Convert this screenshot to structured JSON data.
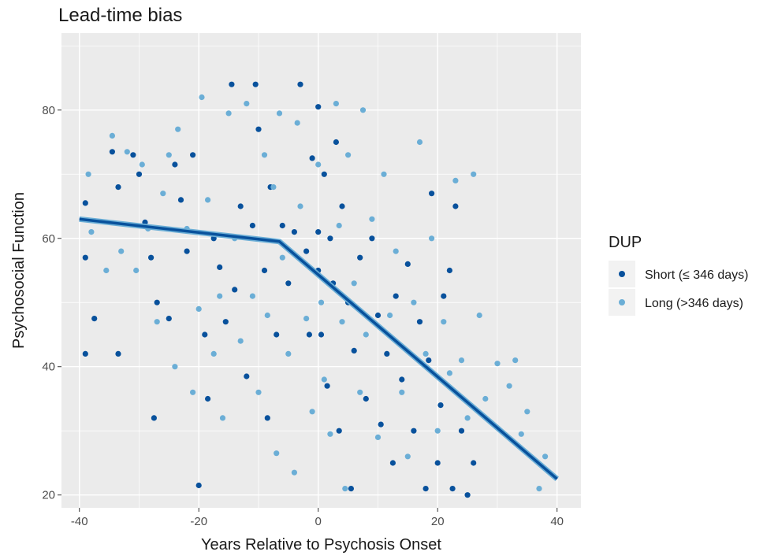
{
  "chart_data": {
    "type": "scatter",
    "title": "Lead-time bias",
    "xlabel": "Years Relative to Psychosis Onset",
    "ylabel": "Psychosocial Function",
    "xlim": [
      -43,
      44
    ],
    "ylim": [
      18,
      92
    ],
    "xticks": [
      -40,
      -20,
      0,
      20,
      40
    ],
    "yticks": [
      20,
      40,
      60,
      80
    ],
    "grid": true,
    "legend": {
      "title": "DUP",
      "position": "right",
      "entries": [
        "Short (≤ 346 days)",
        "Long (>346 days)"
      ]
    },
    "series": [
      {
        "name": "Short (≤ 346 days)",
        "color": "#08519c",
        "points": [
          [
            -39,
            65.5
          ],
          [
            -39,
            57
          ],
          [
            -39,
            42
          ],
          [
            -37.5,
            47.5
          ],
          [
            -34.5,
            73.5
          ],
          [
            -33.5,
            68
          ],
          [
            -33.5,
            42
          ],
          [
            -31,
            73
          ],
          [
            -30,
            70
          ],
          [
            -29,
            62.5
          ],
          [
            -28,
            57
          ],
          [
            -27.5,
            32
          ],
          [
            -27,
            50
          ],
          [
            -25,
            47.5
          ],
          [
            -24,
            71.5
          ],
          [
            -23,
            66
          ],
          [
            -22,
            58
          ],
          [
            -21,
            73
          ],
          [
            -20,
            21.5
          ],
          [
            -19,
            45
          ],
          [
            -18.5,
            35
          ],
          [
            -17.5,
            60
          ],
          [
            -16.5,
            55.5
          ],
          [
            -15.5,
            47
          ],
          [
            -14.5,
            84
          ],
          [
            -14,
            52
          ],
          [
            -13,
            65
          ],
          [
            -12,
            38.5
          ],
          [
            -11,
            62
          ],
          [
            -10.5,
            84
          ],
          [
            -10,
            77
          ],
          [
            -9,
            55
          ],
          [
            -8.5,
            32
          ],
          [
            -8,
            68
          ],
          [
            -7,
            45
          ],
          [
            -6,
            62
          ],
          [
            -5,
            53
          ],
          [
            -4,
            61
          ],
          [
            -3,
            84
          ],
          [
            -2,
            58
          ],
          [
            -1.5,
            45
          ],
          [
            -1,
            72.5
          ],
          [
            0,
            61
          ],
          [
            0,
            80.5
          ],
          [
            0,
            55
          ],
          [
            0.5,
            45
          ],
          [
            1,
            70
          ],
          [
            1.5,
            37
          ],
          [
            2,
            60
          ],
          [
            2.5,
            53
          ],
          [
            3,
            75
          ],
          [
            3.5,
            30
          ],
          [
            4,
            65
          ],
          [
            5,
            50
          ],
          [
            5.5,
            21
          ],
          [
            6,
            42.5
          ],
          [
            7,
            57
          ],
          [
            8,
            35
          ],
          [
            9,
            60
          ],
          [
            10,
            48
          ],
          [
            10.5,
            31
          ],
          [
            11.5,
            42
          ],
          [
            12.5,
            25
          ],
          [
            13,
            51
          ],
          [
            14,
            38
          ],
          [
            15,
            56
          ],
          [
            16,
            30
          ],
          [
            17,
            47
          ],
          [
            18,
            21
          ],
          [
            18.5,
            41
          ],
          [
            19,
            67
          ],
          [
            20,
            25
          ],
          [
            20.5,
            34
          ],
          [
            21,
            51
          ],
          [
            22,
            55
          ],
          [
            22.5,
            21
          ],
          [
            23,
            65
          ],
          [
            24,
            30
          ],
          [
            25,
            20
          ],
          [
            26,
            25
          ]
        ]
      },
      {
        "name": "Long (>346 days)",
        "color": "#6baed6",
        "points": [
          [
            -38.5,
            70
          ],
          [
            -38,
            61
          ],
          [
            -35.5,
            55
          ],
          [
            -34.5,
            76
          ],
          [
            -33,
            58
          ],
          [
            -32,
            73.5
          ],
          [
            -30.5,
            55
          ],
          [
            -29.5,
            71.5
          ],
          [
            -28.5,
            61.5
          ],
          [
            -27,
            47
          ],
          [
            -26,
            67
          ],
          [
            -25,
            73
          ],
          [
            -24,
            40
          ],
          [
            -23.5,
            77
          ],
          [
            -22,
            61.5
          ],
          [
            -21,
            36
          ],
          [
            -20,
            49
          ],
          [
            -19.5,
            82
          ],
          [
            -18.5,
            66
          ],
          [
            -17.5,
            42
          ],
          [
            -16.5,
            51
          ],
          [
            -16,
            32
          ],
          [
            -15,
            79.5
          ],
          [
            -14,
            60
          ],
          [
            -13,
            44
          ],
          [
            -12,
            81
          ],
          [
            -11,
            51
          ],
          [
            -10,
            36
          ],
          [
            -9,
            73
          ],
          [
            -8.5,
            48
          ],
          [
            -7.5,
            68
          ],
          [
            -7,
            26.5
          ],
          [
            -6.5,
            79.5
          ],
          [
            -6,
            57
          ],
          [
            -5,
            42
          ],
          [
            -4,
            23.5
          ],
          [
            -3.5,
            78
          ],
          [
            -3,
            65
          ],
          [
            -2,
            47.5
          ],
          [
            -1,
            33
          ],
          [
            0,
            71.5
          ],
          [
            0.5,
            50
          ],
          [
            1,
            38
          ],
          [
            2,
            29.5
          ],
          [
            3,
            81
          ],
          [
            3.5,
            62
          ],
          [
            4,
            47
          ],
          [
            4.5,
            21
          ],
          [
            5,
            73
          ],
          [
            6,
            53
          ],
          [
            7,
            36
          ],
          [
            7.5,
            80
          ],
          [
            8,
            45
          ],
          [
            9,
            63
          ],
          [
            10,
            29
          ],
          [
            11,
            70
          ],
          [
            12,
            48
          ],
          [
            13,
            58
          ],
          [
            14,
            36
          ],
          [
            15,
            26
          ],
          [
            16,
            50
          ],
          [
            17,
            75
          ],
          [
            18,
            42
          ],
          [
            19,
            60
          ],
          [
            20,
            30
          ],
          [
            21,
            47
          ],
          [
            22,
            39
          ],
          [
            23,
            69
          ],
          [
            24,
            41
          ],
          [
            25,
            32
          ],
          [
            26,
            70
          ],
          [
            27,
            48
          ],
          [
            28,
            35
          ],
          [
            30,
            40.5
          ],
          [
            32,
            37
          ],
          [
            33,
            41
          ],
          [
            34,
            29.5
          ],
          [
            35,
            33
          ],
          [
            37,
            21
          ],
          [
            38,
            26
          ]
        ]
      }
    ],
    "trend_line": {
      "color": "#08519c",
      "points": [
        [
          -40,
          63
        ],
        [
          -6.5,
          59.5
        ],
        [
          40,
          22.5
        ]
      ]
    }
  }
}
